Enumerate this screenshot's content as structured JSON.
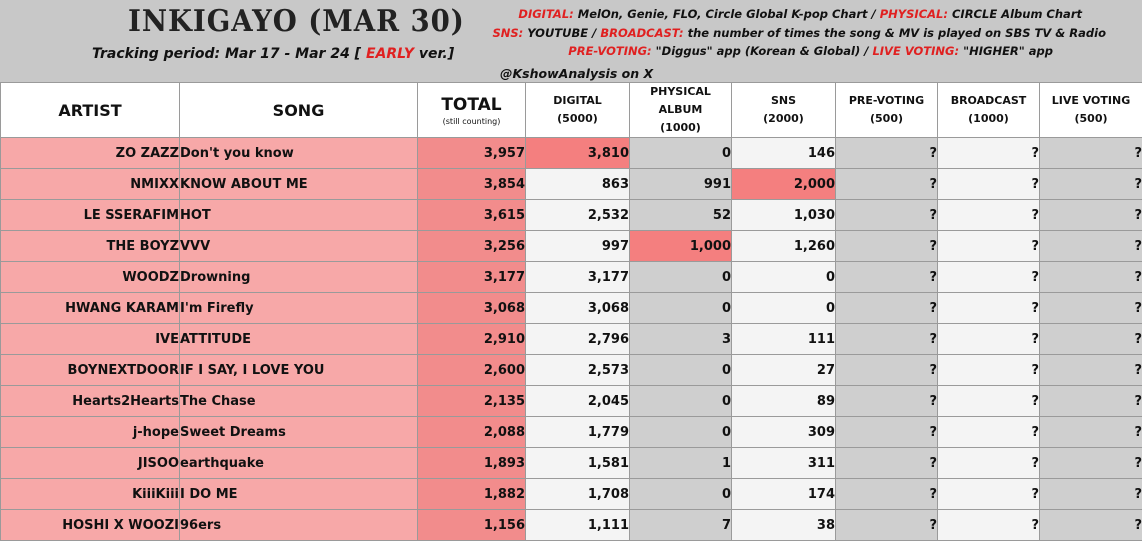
{
  "header": {
    "title": "INKIGAYO (MAR 30)",
    "tracking_prefix": "Tracking period: Mar 17 - Mar 24 [",
    "tracking_early": "EARLY",
    "tracking_suffix": "ver.]",
    "credit": "@KshowAnalysis on X",
    "info_line1_label1": "DIGITAL:",
    "info_line1_text1": "MelOn, Genie, FLO, Circle Global K-pop Chart /",
    "info_line1_label2": "PHYSICAL:",
    "info_line1_text2": "CIRCLE Album Chart",
    "info_line2_label1": "SNS:",
    "info_line2_text1": "YOUTUBE /",
    "info_line2_label2": "BROADCAST:",
    "info_line2_text2": "the number of times the song & MV is played on SBS TV & Radio",
    "info_line3_label1": "PRE-VOTING:",
    "info_line3_text1": "\"Diggus\" app (Korean & Global) /",
    "info_line3_label2": "LIVE VOTING:",
    "info_line3_text2": "\"HIGHER\" app",
    "accent_red": "#e02020"
  },
  "columns": {
    "artist": "ARTIST",
    "song": "SONG",
    "total": "TOTAL",
    "total_note": "(still counting)",
    "digital_l1": "DIGITAL",
    "digital_l2": "(5000)",
    "physical_l1": "PHYSICAL",
    "physical_l2": "ALBUM",
    "physical_l3": "(1000)",
    "sns_l1": "SNS",
    "sns_l2": "(2000)",
    "prevoting_l1": "PRE-VOTING",
    "prevoting_l2": "(500)",
    "broadcast_l1": "BROADCAST",
    "broadcast_l2": "(1000)",
    "live_l1": "LIVE VOTING",
    "live_l2": "(500)"
  },
  "rows": [
    {
      "artist": "ZO ZAZZ",
      "song": "Don't you know",
      "total": "3,957",
      "digital": "3,810",
      "physical": "0",
      "sns": "146",
      "prevoting": "?",
      "broadcast": "?",
      "live": "?"
    },
    {
      "artist": "NMIXX",
      "song": "KNOW ABOUT ME",
      "total": "3,854",
      "digital": "863",
      "physical": "991",
      "sns": "2,000",
      "prevoting": "?",
      "broadcast": "?",
      "live": "?"
    },
    {
      "artist": "LE SSERAFIM",
      "song": "HOT",
      "total": "3,615",
      "digital": "2,532",
      "physical": "52",
      "sns": "1,030",
      "prevoting": "?",
      "broadcast": "?",
      "live": "?"
    },
    {
      "artist": "THE BOYZ",
      "song": "VVV",
      "total": "3,256",
      "digital": "997",
      "physical": "1,000",
      "sns": "1,260",
      "prevoting": "?",
      "broadcast": "?",
      "live": "?"
    },
    {
      "artist": "WOODZ",
      "song": "Drowning",
      "total": "3,177",
      "digital": "3,177",
      "physical": "0",
      "sns": "0",
      "prevoting": "?",
      "broadcast": "?",
      "live": "?"
    },
    {
      "artist": "HWANG KARAM",
      "song": "I'm Firefly",
      "total": "3,068",
      "digital": "3,068",
      "physical": "0",
      "sns": "0",
      "prevoting": "?",
      "broadcast": "?",
      "live": "?"
    },
    {
      "artist": "IVE",
      "song": "ATTITUDE",
      "total": "2,910",
      "digital": "2,796",
      "physical": "3",
      "sns": "111",
      "prevoting": "?",
      "broadcast": "?",
      "live": "?"
    },
    {
      "artist": "BOYNEXTDOOR",
      "song": "IF I SAY, I LOVE YOU",
      "total": "2,600",
      "digital": "2,573",
      "physical": "0",
      "sns": "27",
      "prevoting": "?",
      "broadcast": "?",
      "live": "?"
    },
    {
      "artist": "Hearts2Hearts",
      "song": "The Chase",
      "total": "2,135",
      "digital": "2,045",
      "physical": "0",
      "sns": "89",
      "prevoting": "?",
      "broadcast": "?",
      "live": "?"
    },
    {
      "artist": "j-hope",
      "song": "Sweet Dreams",
      "total": "2,088",
      "digital": "1,779",
      "physical": "0",
      "sns": "309",
      "prevoting": "?",
      "broadcast": "?",
      "live": "?"
    },
    {
      "artist": "JISOO",
      "song": "earthquake",
      "total": "1,893",
      "digital": "1,581",
      "physical": "1",
      "sns": "311",
      "prevoting": "?",
      "broadcast": "?",
      "live": "?"
    },
    {
      "artist": "KiiiKiii",
      "song": "I DO ME",
      "total": "1,882",
      "digital": "1,708",
      "physical": "0",
      "sns": "174",
      "prevoting": "?",
      "broadcast": "?",
      "live": "?"
    },
    {
      "artist": "HOSHI X WOOZI",
      "song": "96ers",
      "total": "1,156",
      "digital": "1,111",
      "physical": "7",
      "sns": "38",
      "prevoting": "?",
      "broadcast": "?",
      "live": "?"
    }
  ],
  "highlights": [
    {
      "row": 0,
      "col": "digital"
    },
    {
      "row": 1,
      "col": "sns"
    },
    {
      "row": 3,
      "col": "physical"
    }
  ],
  "colors": {
    "artist_bg": "#f7a8a8",
    "total_bg": "#f28c8c",
    "highlight_bg": "#f47f7f",
    "white_cell": "#f4f4f4",
    "gray_cell": "#cfcfcf"
  }
}
